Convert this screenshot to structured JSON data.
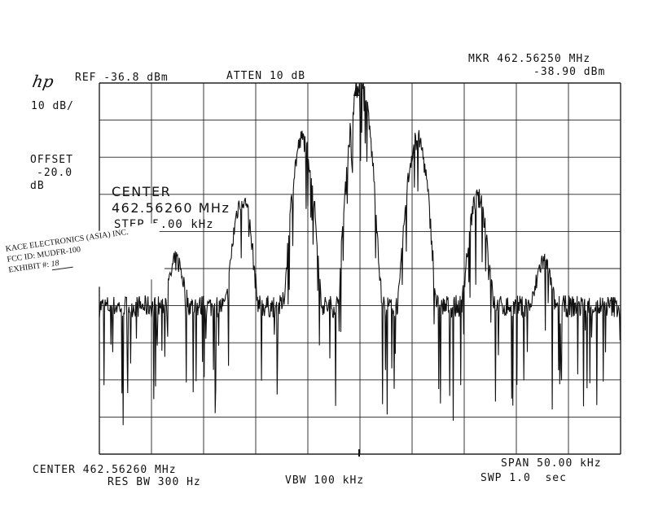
{
  "header": {
    "logo": "hp",
    "ref": "REF -36.8 dBm",
    "atten": "ATTEN 10 dB",
    "marker_freq": "MKR 462.56250 MHz",
    "marker_level": "-38.90 dBm"
  },
  "left_panel": {
    "scale": "10 dB/",
    "offset_label": "OFFSET",
    "offset_value": "-20.0",
    "offset_unit": "dB"
  },
  "overlay": {
    "center_label": "CENTER",
    "center_value": "462.56260 MHz",
    "step": "STEP 5.00 kHz"
  },
  "footer": {
    "center": "CENTER 462.56260 MHz",
    "res_bw": "RES BW 300 Hz",
    "vbw": "VBW 100 kHz",
    "span": "SPAN 50.00 kHz",
    "sweep": "SWP 1.0  sec"
  },
  "stamp": {
    "company": "KACE ELECTRONICS (ASIA) INC.",
    "fcc_id": "FCC ID: MUDFR-100",
    "exhibit_label": "EXHIBIT #:",
    "exhibit_no": "18"
  },
  "chart_data": {
    "type": "line",
    "title": "",
    "xlabel": "",
    "ylabel": "",
    "x_unit": "kHz offset from center",
    "y_unit": "dBm",
    "xlim": [
      -25,
      25
    ],
    "ylim": [
      -136.8,
      -36.8
    ],
    "grid": true,
    "noise_floor_dbm": -97,
    "series": [
      {
        "values_note": "",
        "peaks": [
          {
            "offset_khz": -17.6,
            "level_dbm": -85
          },
          {
            "offset_khz": -11.3,
            "level_dbm": -68
          },
          {
            "offset_khz": -5.5,
            "level_dbm": -52
          },
          {
            "offset_khz": 0.0,
            "level_dbm": -37
          },
          {
            "offset_khz": 5.5,
            "level_dbm": -52
          },
          {
            "offset_khz": 11.3,
            "level_dbm": -68
          },
          {
            "offset_khz": 17.6,
            "level_dbm": -85
          }
        ]
      }
    ]
  }
}
